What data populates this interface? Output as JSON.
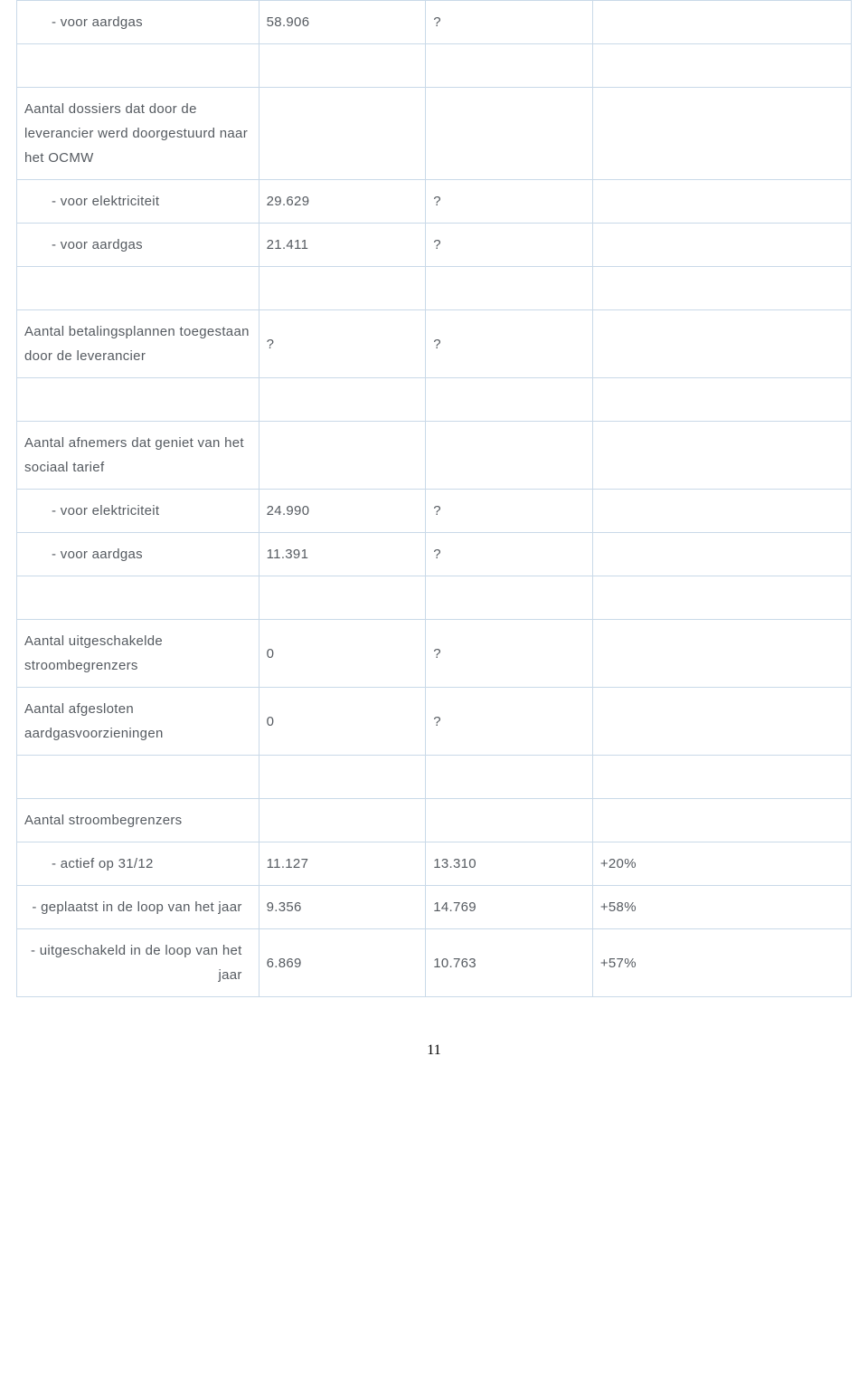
{
  "rows": [
    {
      "type": "data",
      "indent": true,
      "label": "- voor aardgas",
      "v1": "58.906",
      "v2": "?",
      "v3": ""
    },
    {
      "type": "spacer"
    },
    {
      "type": "data",
      "indent": false,
      "label": "Aantal dossiers dat door de leverancier werd doorgestuurd naar het OCMW",
      "v1": "",
      "v2": "",
      "v3": ""
    },
    {
      "type": "data",
      "indent": true,
      "label": "- voor elektriciteit",
      "v1": "29.629",
      "v2": "?",
      "v3": ""
    },
    {
      "type": "data",
      "indent": true,
      "label": "- voor aardgas",
      "v1": "21.411",
      "v2": "?",
      "v3": ""
    },
    {
      "type": "spacer"
    },
    {
      "type": "data",
      "indent": false,
      "label": "Aantal betalingsplannen toegestaan door de leverancier",
      "v1": "?",
      "v2": "?",
      "v3": ""
    },
    {
      "type": "spacer"
    },
    {
      "type": "data",
      "indent": false,
      "label": "Aantal afnemers dat geniet van het sociaal tarief",
      "v1": "",
      "v2": "",
      "v3": ""
    },
    {
      "type": "data",
      "indent": true,
      "label": "- voor elektriciteit",
      "v1": "24.990",
      "v2": "?",
      "v3": ""
    },
    {
      "type": "data",
      "indent": true,
      "label": "- voor aardgas",
      "v1": "11.391",
      "v2": "?",
      "v3": ""
    },
    {
      "type": "spacer"
    },
    {
      "type": "data",
      "indent": false,
      "label": "Aantal uitgeschakelde stroombegrenzers",
      "v1": "0",
      "v2": "?",
      "v3": ""
    },
    {
      "type": "data",
      "indent": false,
      "label": "Aantal afgesloten aardgasvoorzieningen",
      "v1": "0",
      "v2": "?",
      "v3": ""
    },
    {
      "type": "spacer"
    },
    {
      "type": "data",
      "indent": false,
      "label": "Aantal stroombegrenzers",
      "v1": "",
      "v2": "",
      "v3": ""
    },
    {
      "type": "data",
      "indent": true,
      "label": "- actief op 31/12",
      "v1": "11.127",
      "v2": "13.310",
      "v3": "+20%"
    },
    {
      "type": "data",
      "indent": false,
      "label_right": true,
      "label": "- geplaatst in de loop van het jaar",
      "v1": "9.356",
      "v2": "14.769",
      "v3": "+58%"
    },
    {
      "type": "data",
      "indent": false,
      "label_right": true,
      "label": "- uitgeschakeld in de loop van het jaar",
      "v1": "6.869",
      "v2": "10.763",
      "v3": "+57%"
    }
  ],
  "page_number": "11",
  "colors": {
    "border": "#c9d9e8",
    "text": "#555a60",
    "background": "#ffffff"
  }
}
